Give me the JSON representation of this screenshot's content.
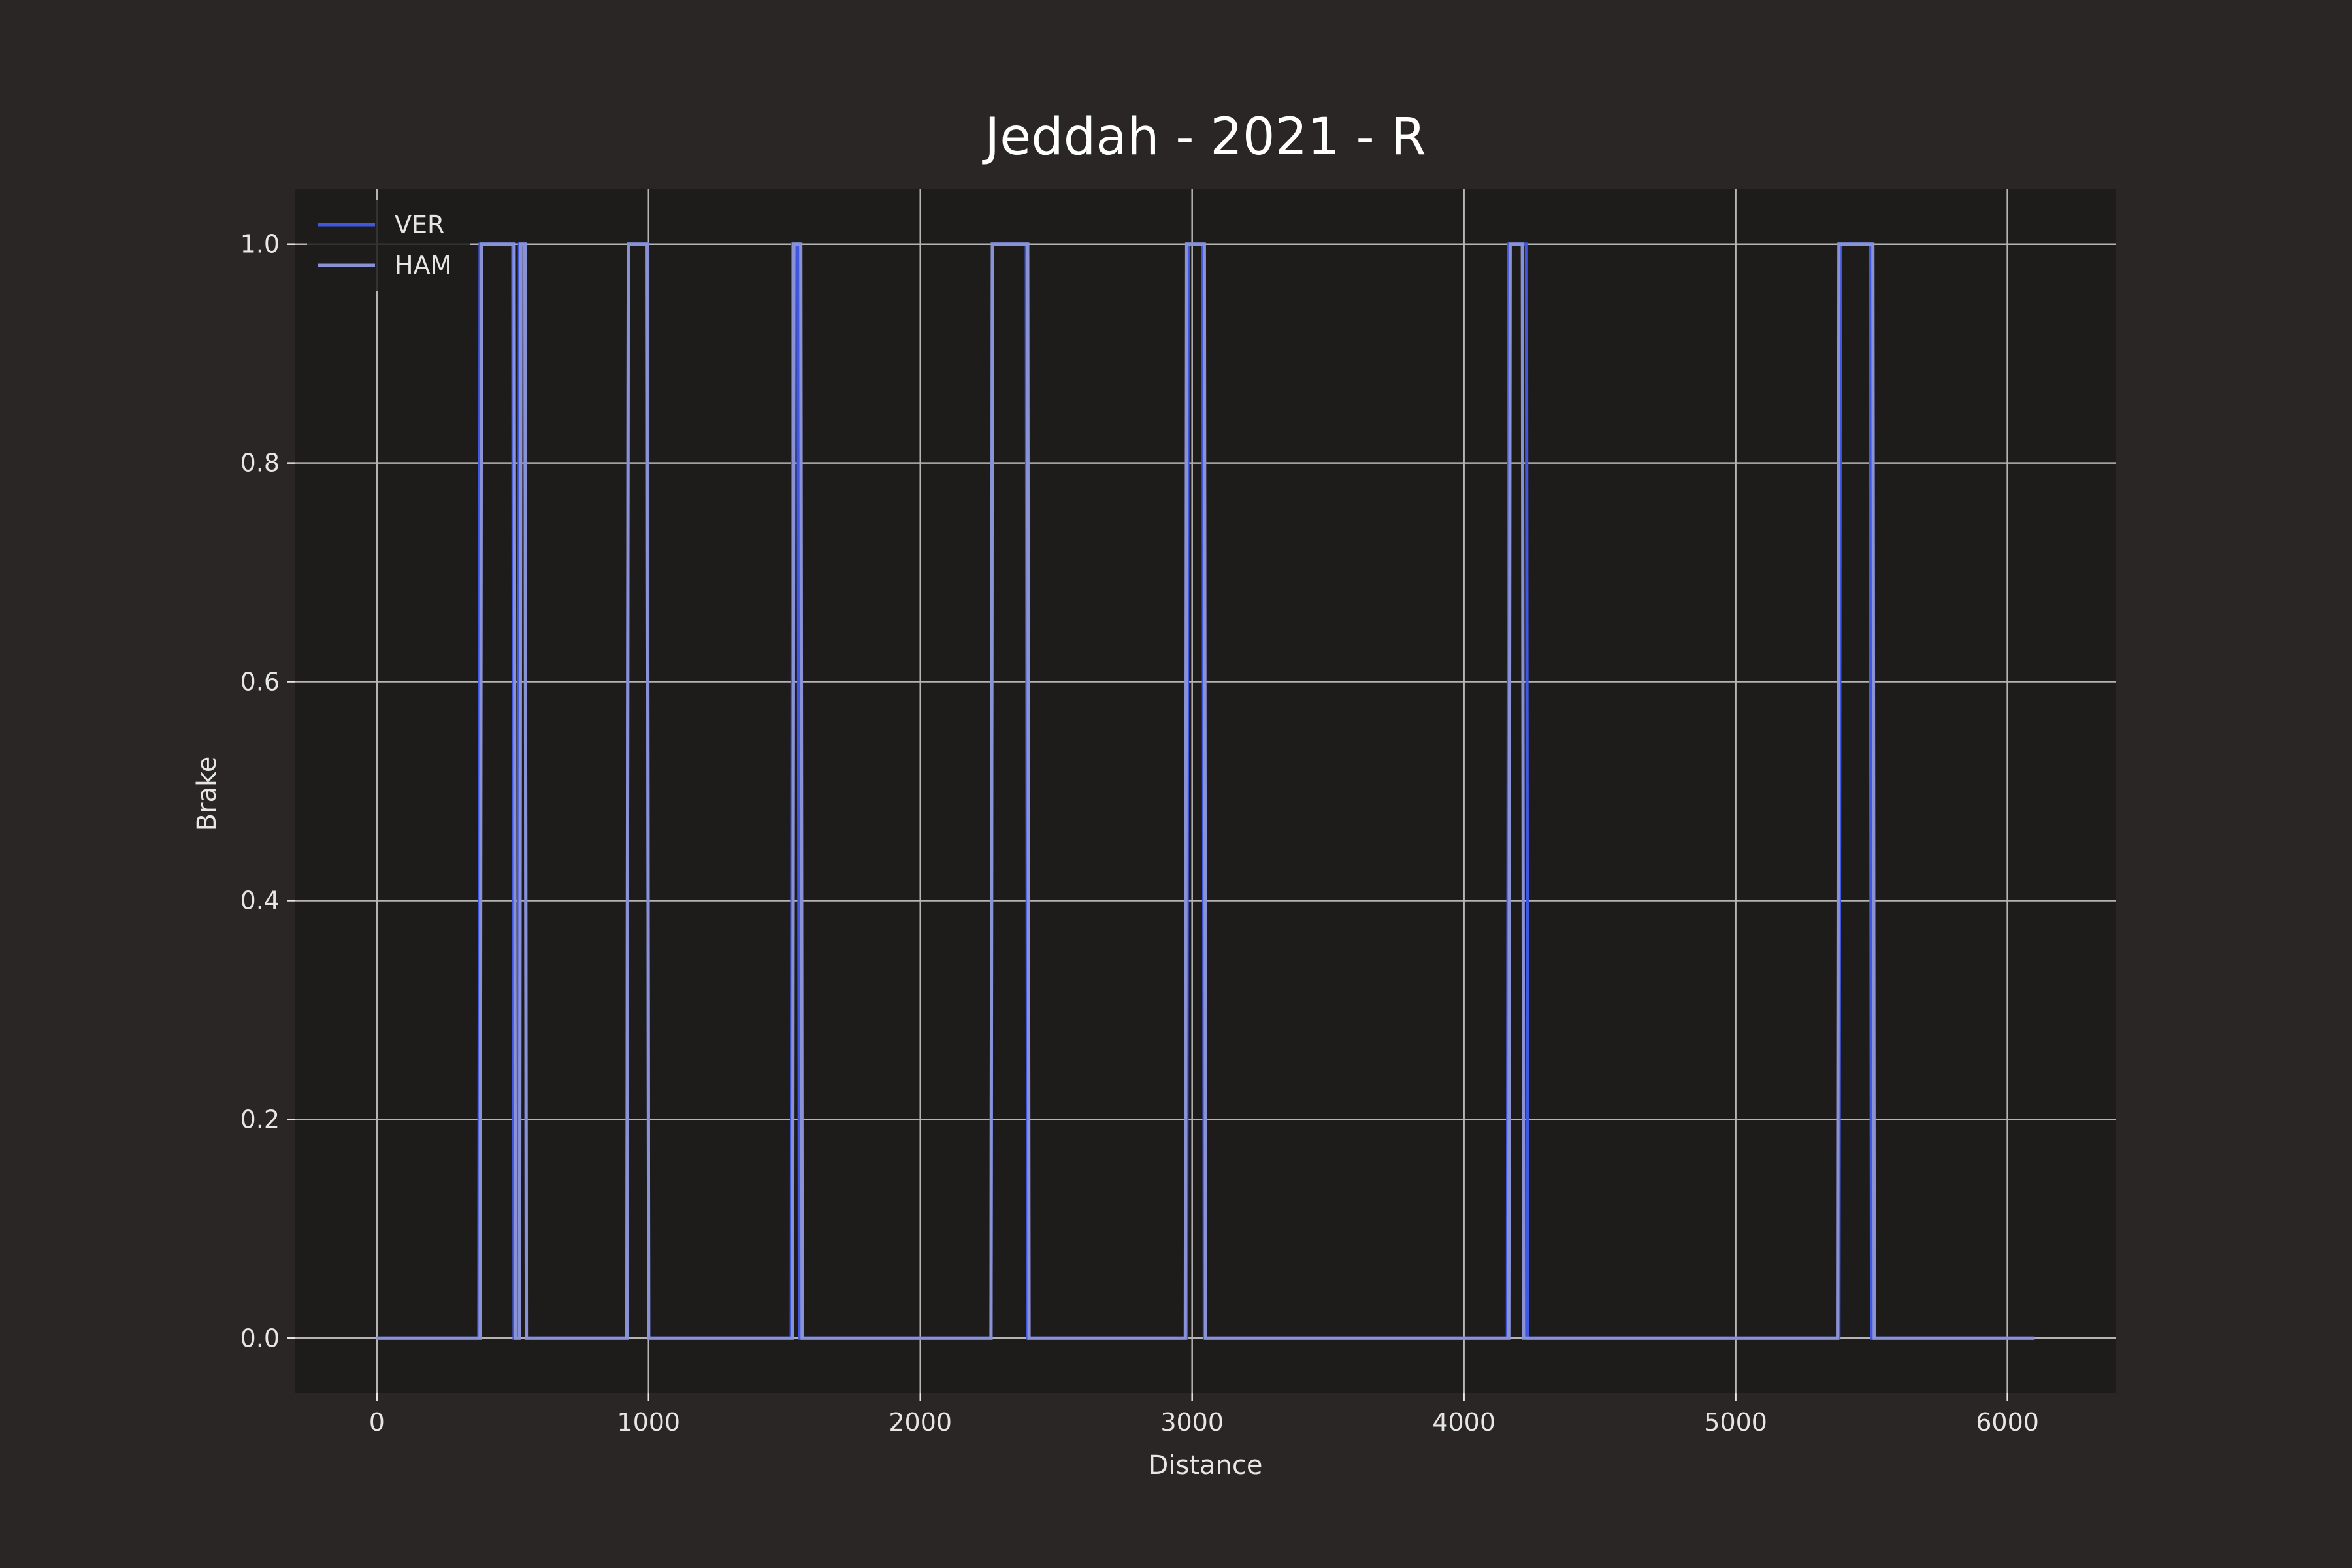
{
  "chart_data": {
    "type": "line",
    "title": "Jeddah - 2021 - R",
    "xlabel": "Distance",
    "ylabel": "Brake",
    "xlim": [
      -300,
      6400
    ],
    "ylim": [
      -0.05,
      1.05
    ],
    "xticks": [
      0,
      1000,
      2000,
      3000,
      4000,
      5000,
      6000
    ],
    "yticks": [
      0.0,
      0.2,
      0.4,
      0.6,
      0.8,
      1.0
    ],
    "xtick_labels": [
      "0",
      "1000",
      "2000",
      "3000",
      "4000",
      "5000",
      "6000"
    ],
    "ytick_labels": [
      "0.0",
      "0.2",
      "0.4",
      "0.6",
      "0.8",
      "1.0"
    ],
    "grid": true,
    "legend_position": "top-left",
    "colors": {
      "figure_bg": "#292625",
      "axes_bg": "#1e1c1b",
      "grid": "#b4b4b4",
      "text": "#e6e6e6"
    },
    "series": [
      {
        "name": "VER",
        "color": "#4257e0",
        "x": [
          0,
          375,
          380,
          500,
          505,
          520,
          525,
          545,
          550,
          920,
          925,
          995,
          1000,
          1525,
          1530,
          1550,
          1555,
          2260,
          2265,
          2390,
          2395,
          2980,
          2985,
          3040,
          3045,
          4160,
          4165,
          4230,
          4235,
          5380,
          5385,
          5495,
          5500,
          6100
        ],
        "y": [
          0,
          0,
          1,
          1,
          0,
          0,
          1,
          1,
          0,
          0,
          1,
          1,
          0,
          0,
          1,
          1,
          0,
          0,
          1,
          1,
          0,
          0,
          1,
          1,
          0,
          0,
          1,
          1,
          0,
          0,
          1,
          1,
          0,
          0
        ]
      },
      {
        "name": "HAM",
        "color": "#8a92d6",
        "x": [
          0,
          380,
          385,
          505,
          510,
          525,
          530,
          545,
          550,
          920,
          925,
          995,
          1000,
          1530,
          1535,
          1560,
          1565,
          2260,
          2265,
          2395,
          2400,
          2975,
          2980,
          3045,
          3050,
          4165,
          4170,
          4215,
          4220,
          5375,
          5380,
          5505,
          5510,
          6100
        ],
        "y": [
          0,
          0,
          1,
          1,
          0,
          0,
          1,
          1,
          0,
          0,
          1,
          1,
          0,
          0,
          1,
          1,
          0,
          0,
          1,
          1,
          0,
          0,
          1,
          1,
          0,
          0,
          1,
          1,
          0,
          0,
          1,
          1,
          0,
          0
        ]
      }
    ]
  }
}
